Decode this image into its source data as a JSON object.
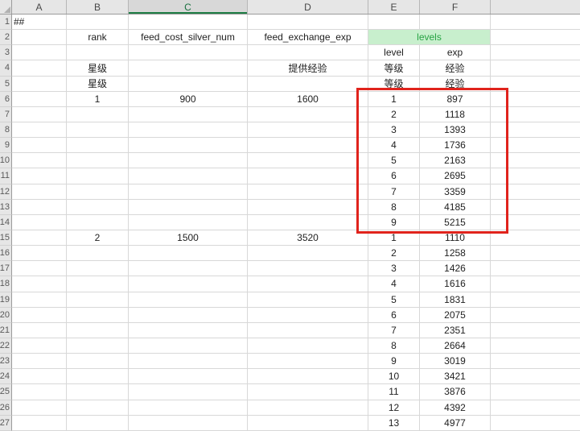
{
  "spreadsheet": {
    "column_headers": [
      "A",
      "B",
      "C",
      "D",
      "E",
      "F"
    ],
    "active_column": "C",
    "first_row": 1,
    "last_row": 27,
    "merged_cell": {
      "range": "E2:F2",
      "label": "levels"
    },
    "annotation": {
      "shape": "rectangle",
      "around_range": "E6:F14",
      "color": "#e0231c"
    },
    "colors": {
      "levels_bg": "#c8efcd",
      "levels_text": "#27a343",
      "active_header_underline": "#1e7e45",
      "annotation_red": "#e0231c"
    },
    "rows": {
      "1": {
        "A": "##"
      },
      "2": {
        "B": "rank",
        "C": "feed_cost_silver_num",
        "D": "feed_exchange_exp",
        "E": "levels"
      },
      "3": {
        "E": "level",
        "F": "exp"
      },
      "4": {
        "B": "星级",
        "D": "提供经验",
        "E": "等级",
        "F": "经验"
      },
      "5": {
        "B": "星级",
        "E": "等级",
        "F": "经验"
      },
      "6": {
        "B": "1",
        "C": "900",
        "D": "1600",
        "E": "1",
        "F": "897"
      },
      "7": {
        "E": "2",
        "F": "1118"
      },
      "8": {
        "E": "3",
        "F": "1393"
      },
      "9": {
        "E": "4",
        "F": "1736"
      },
      "10": {
        "E": "5",
        "F": "2163"
      },
      "11": {
        "E": "6",
        "F": "2695"
      },
      "12": {
        "E": "7",
        "F": "3359"
      },
      "13": {
        "E": "8",
        "F": "4185"
      },
      "14": {
        "E": "9",
        "F": "5215"
      },
      "15": {
        "B": "2",
        "C": "1500",
        "D": "3520",
        "E": "1",
        "F": "1110"
      },
      "16": {
        "E": "2",
        "F": "1258"
      },
      "17": {
        "E": "3",
        "F": "1426"
      },
      "18": {
        "E": "4",
        "F": "1616"
      },
      "19": {
        "E": "5",
        "F": "1831"
      },
      "20": {
        "E": "6",
        "F": "2075"
      },
      "21": {
        "E": "7",
        "F": "2351"
      },
      "22": {
        "E": "8",
        "F": "2664"
      },
      "23": {
        "E": "9",
        "F": "3019"
      },
      "24": {
        "E": "10",
        "F": "3421"
      },
      "25": {
        "E": "11",
        "F": "3876"
      },
      "26": {
        "E": "12",
        "F": "4392"
      },
      "27": {
        "E": "13",
        "F": "4977"
      }
    }
  }
}
